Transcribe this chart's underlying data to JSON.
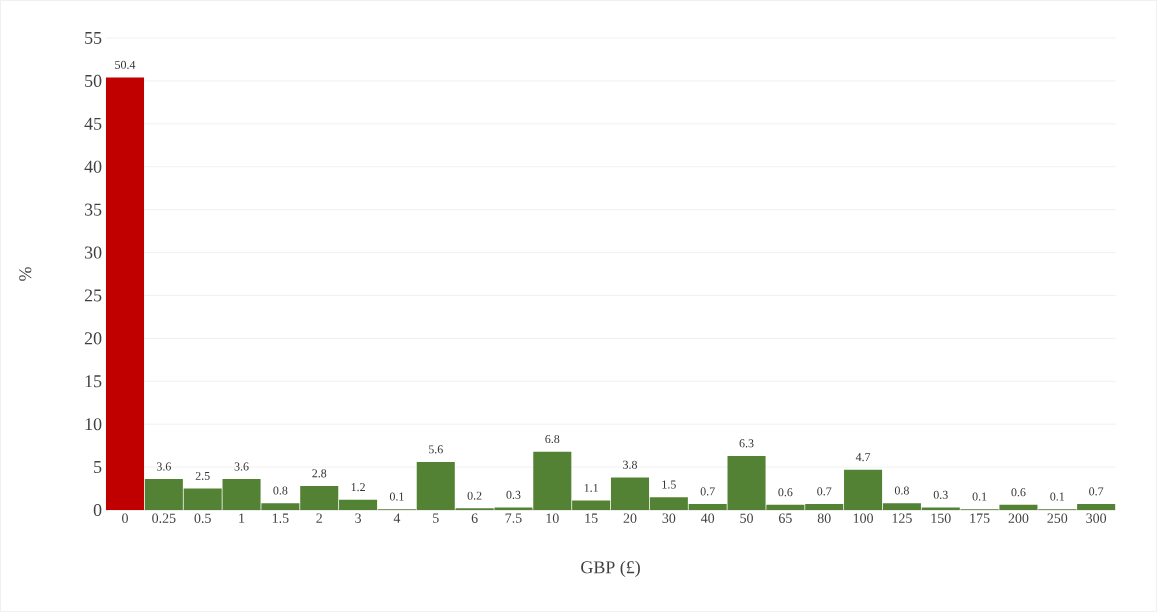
{
  "chart_data": {
    "type": "bar",
    "xlabel": "GBP (£)",
    "ylabel": "%",
    "categories": [
      "0",
      "0.25",
      "0.5",
      "1",
      "1.5",
      "2",
      "3",
      "4",
      "5",
      "6",
      "7.5",
      "10",
      "15",
      "20",
      "30",
      "40",
      "50",
      "65",
      "80",
      "100",
      "125",
      "150",
      "175",
      "200",
      "250",
      "300"
    ],
    "values": [
      50.4,
      3.6,
      2.5,
      3.6,
      0.8,
      2.8,
      1.2,
      0.1,
      5.6,
      0.2,
      0.3,
      6.8,
      1.1,
      3.8,
      1.5,
      0.7,
      6.3,
      0.6,
      0.7,
      4.7,
      0.8,
      0.3,
      0.1,
      0.6,
      0.1,
      0.7
    ],
    "colors": [
      "#c00000",
      "#548235",
      "#548235",
      "#548235",
      "#548235",
      "#548235",
      "#548235",
      "#548235",
      "#548235",
      "#548235",
      "#548235",
      "#548235",
      "#548235",
      "#548235",
      "#548235",
      "#548235",
      "#548235",
      "#548235",
      "#548235",
      "#548235",
      "#548235",
      "#548235",
      "#548235",
      "#548235",
      "#548235",
      "#548235"
    ],
    "ylim": [
      0,
      55
    ],
    "yticks": [
      0,
      5,
      10,
      15,
      20,
      25,
      30,
      35,
      40,
      45,
      50,
      55
    ],
    "grid": "y",
    "data_labels": true
  }
}
